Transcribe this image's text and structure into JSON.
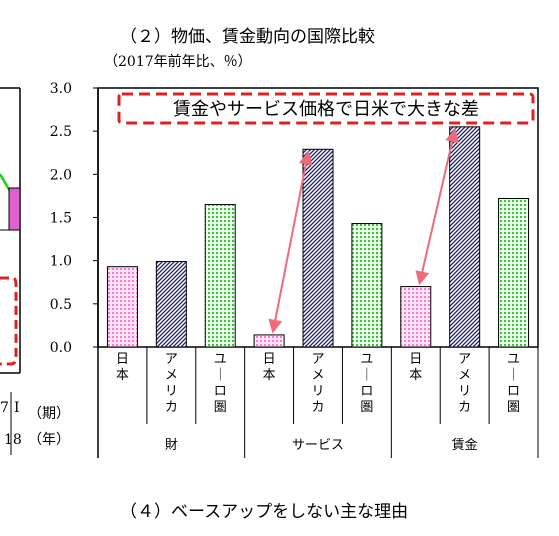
{
  "title": "（２）物価、賃金動向の国際比較",
  "subtitle": "（2017年前年比、％）",
  "next_section_title": "（４）ベースアップをしない主な理由",
  "left_panel_fragment": {
    "axis_labels": [
      "7",
      "I",
      "18"
    ],
    "unit_labels": [
      "（期）",
      "（年）"
    ],
    "colors": {
      "line": "#22cc22",
      "bar": "#e060d0",
      "dashed_box": "#e02020"
    }
  },
  "chart_data": {
    "type": "bar",
    "title": "（２）物価、賃金動向の国際比較",
    "subtitle": "（2017年前年比、％）",
    "ylim": [
      0,
      3.0
    ],
    "yticks": [
      "0.0",
      "0.5",
      "1.0",
      "1.5",
      "2.0",
      "2.5",
      "3.0"
    ],
    "groups": [
      "財",
      "サービス",
      "賃金"
    ],
    "categories": [
      "日本",
      "アメリカ",
      "ユーロ圏",
      "日本",
      "アメリカ",
      "ユーロ圏",
      "日本",
      "アメリカ",
      "ユーロ圏"
    ],
    "values": [
      0.93,
      0.99,
      1.65,
      0.14,
      2.29,
      1.43,
      0.7,
      2.55,
      1.72
    ],
    "annotation": "賃金やサービス価格で日米で大きな差",
    "colors": {
      "japan": "#ff7ad6",
      "usa": "#1a1a6e",
      "euro": "#3fbf3f",
      "arrow": "#f06b7a",
      "annotation_border": "#e02020"
    },
    "grid": false
  }
}
